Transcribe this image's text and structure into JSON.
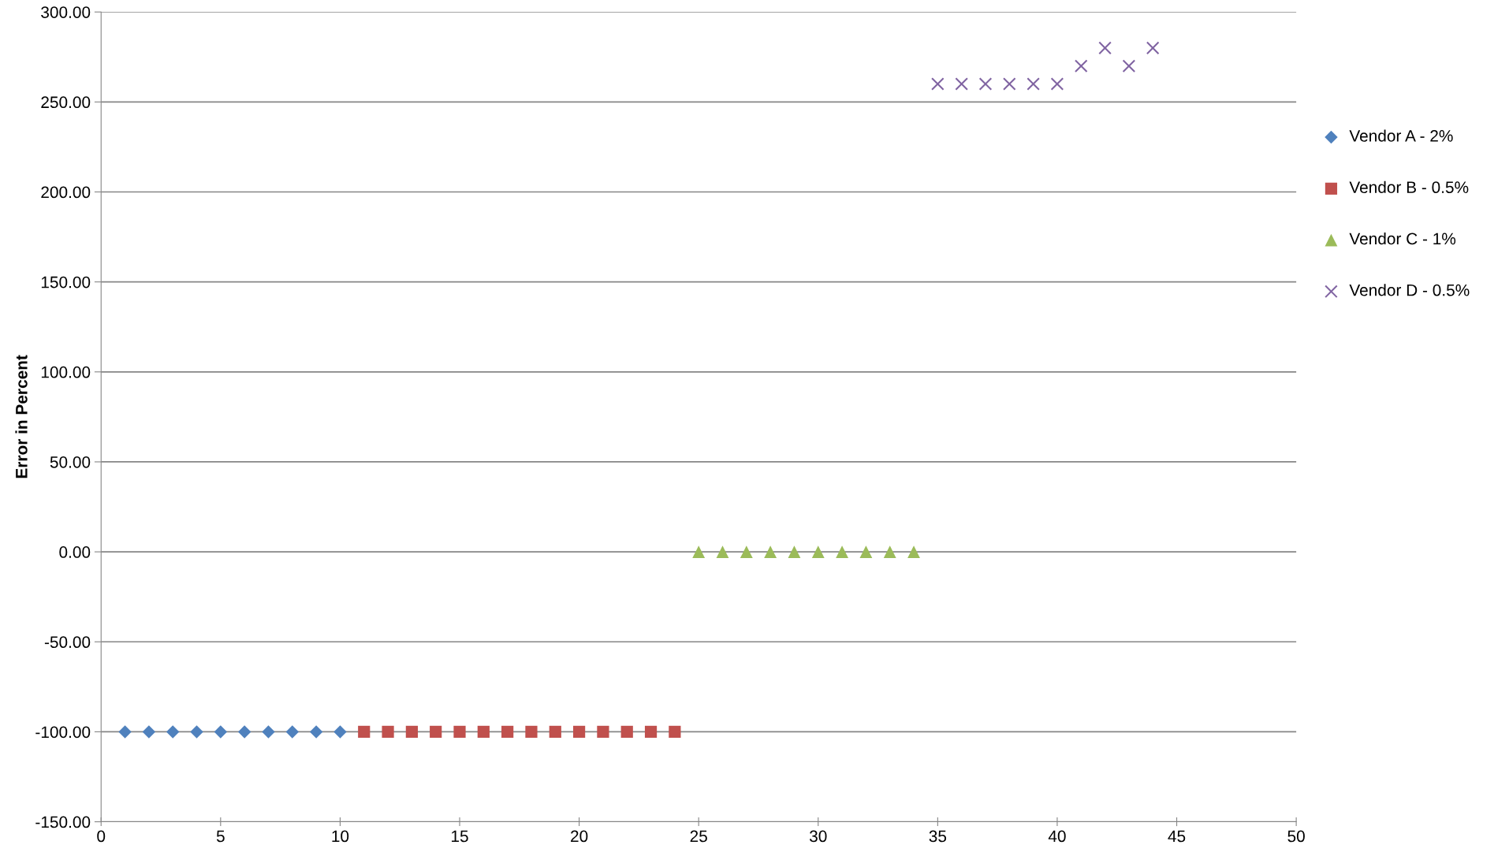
{
  "chart_data": {
    "type": "scatter",
    "ylabel": "Error in Percent",
    "xlim": [
      0,
      50
    ],
    "xticks": [
      0,
      5,
      10,
      15,
      20,
      25,
      30,
      35,
      40,
      45,
      50
    ],
    "ylim": [
      -150,
      300
    ],
    "yticks": [
      {
        "value": -150,
        "label": "-150.00"
      },
      {
        "value": -100,
        "label": "-100.00"
      },
      {
        "value": -50,
        "label": "-50.00"
      },
      {
        "value": 0,
        "label": "0.00"
      },
      {
        "value": 50,
        "label": "50.00"
      },
      {
        "value": 100,
        "label": "100.00"
      },
      {
        "value": 150,
        "label": "150.00"
      },
      {
        "value": 200,
        "label": "200.00"
      },
      {
        "value": 250,
        "label": "250.00"
      },
      {
        "value": 300,
        "label": "300.00"
      }
    ],
    "grid": "y",
    "legend": "right",
    "series": [
      {
        "name": "Vendor A - 2%",
        "color": "#4f81bd",
        "marker": "diamond",
        "x": [
          1,
          2,
          3,
          4,
          5,
          6,
          7,
          8,
          9,
          10
        ],
        "values": [
          -100,
          -100,
          -100,
          -100,
          -100,
          -100,
          -100,
          -100,
          -100,
          -100
        ]
      },
      {
        "name": "Vendor B - 0.5%",
        "color": "#c0504d",
        "marker": "square",
        "x": [
          11,
          12,
          13,
          14,
          15,
          16,
          17,
          18,
          19,
          20,
          21,
          22,
          23,
          24
        ],
        "values": [
          -100,
          -100,
          -100,
          -100,
          -100,
          -100,
          -100,
          -100,
          -100,
          -100,
          -100,
          -100,
          -100,
          -100
        ]
      },
      {
        "name": "Vendor C - 1%",
        "color": "#9bbb59",
        "marker": "triangle",
        "x": [
          25,
          26,
          27,
          28,
          29,
          30,
          31,
          32,
          33,
          34
        ],
        "values": [
          0,
          0,
          0,
          0,
          0,
          0,
          0,
          0,
          0,
          0
        ]
      },
      {
        "name": "Vendor D - 0.5%",
        "color": "#8064a2",
        "marker": "cross",
        "x": [
          35,
          36,
          37,
          38,
          39,
          40,
          41,
          42,
          43,
          44
        ],
        "values": [
          260,
          260,
          260,
          260,
          260,
          260,
          270,
          280,
          270,
          280
        ]
      }
    ]
  }
}
